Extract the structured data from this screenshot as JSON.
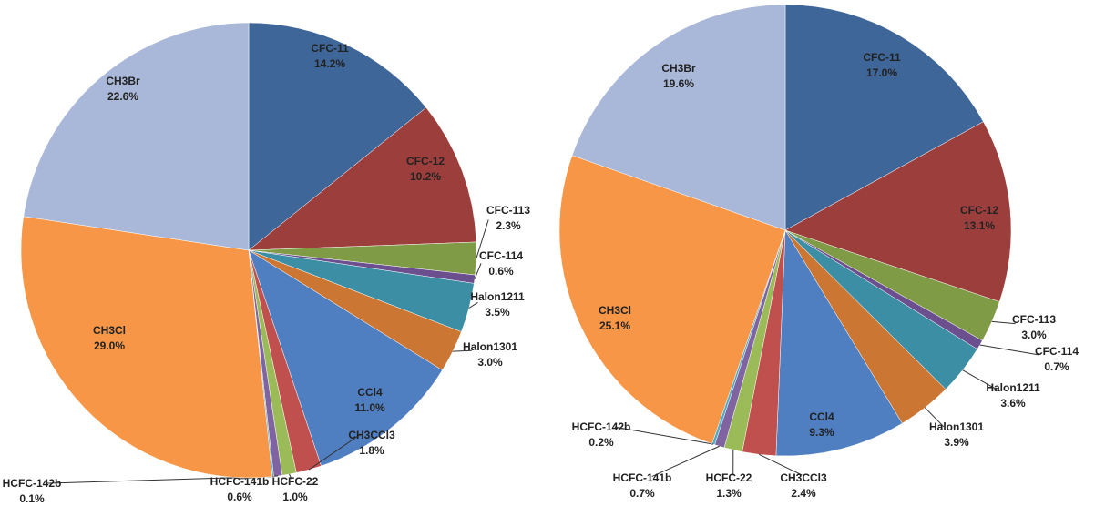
{
  "chart_data": [
    {
      "type": "pie",
      "categories": [
        "CFC-11",
        "CFC-12",
        "CFC-113",
        "CFC-114",
        "Halon1211",
        "Halon1301",
        "CCl4",
        "CH3CCl3",
        "HCFC-22",
        "HCFC-141b",
        "HCFC-142b",
        "CH3Cl",
        "CH3Br"
      ],
      "values": [
        14.2,
        10.2,
        2.3,
        0.6,
        3.5,
        3.0,
        11.0,
        1.8,
        1.0,
        0.6,
        0.1,
        29.0,
        22.6
      ],
      "value_labels": [
        "14.2%",
        "10.2%",
        "2.3%",
        "0.6%",
        "3.5%",
        "3.0%",
        "11.0%",
        "1.8%",
        "1.0%",
        "0.6%",
        "0.1%",
        "29.0%",
        "22.6%"
      ],
      "colors": [
        "#3f6699",
        "#9c3f3c",
        "#7f9b45",
        "#6b4f8f",
        "#3b8ea4",
        "#cc7633",
        "#4f7fc0",
        "#c0504d",
        "#9bbb59",
        "#8064a2",
        "#4bacc6",
        "#f79646",
        "#a9b8d8"
      ]
    },
    {
      "type": "pie",
      "categories": [
        "CFC-11",
        "CFC-12",
        "CFC-113",
        "CFC-114",
        "Halon1211",
        "Halon1301",
        "CCl4",
        "CH3CCl3",
        "HCFC-22",
        "HCFC-141b",
        "HCFC-142b",
        "CH3Cl",
        "CH3Br"
      ],
      "values": [
        17.0,
        13.1,
        3.0,
        0.7,
        3.6,
        3.9,
        9.3,
        2.4,
        1.3,
        0.7,
        0.2,
        25.1,
        19.6
      ],
      "value_labels": [
        "17.0%",
        "13.1%",
        "3.0%",
        "0.7%",
        "3.6%",
        "3.9%",
        "9.3%",
        "2.4%",
        "1.3%",
        "0.7%",
        "0.2%",
        "25.1%",
        "19.6%"
      ],
      "colors": [
        "#3f6699",
        "#9c3f3c",
        "#7f9b45",
        "#6b4f8f",
        "#3b8ea4",
        "#cc7633",
        "#4f7fc0",
        "#c0504d",
        "#9bbb59",
        "#8064a2",
        "#4bacc6",
        "#f79646",
        "#a9b8d8"
      ]
    }
  ]
}
